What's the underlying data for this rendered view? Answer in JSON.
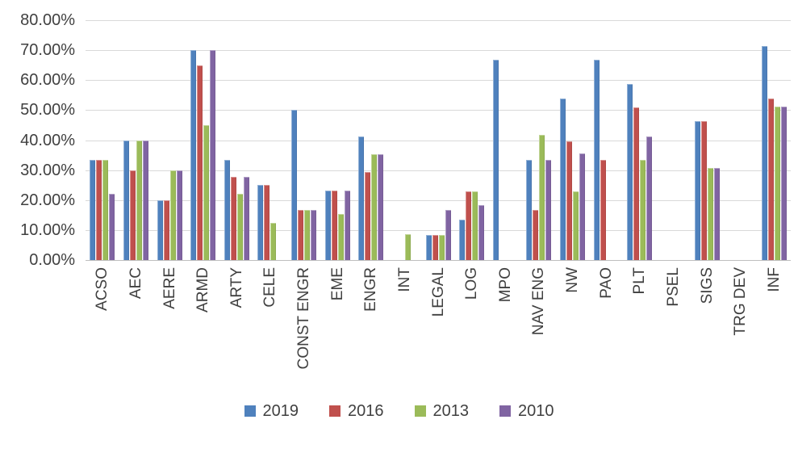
{
  "colors": {
    "gridline": "#d9d9d9",
    "axis_line": "#bfbfbf",
    "text": "#404040",
    "background": "#ffffff"
  },
  "chart_data": {
    "type": "bar",
    "title": "",
    "xlabel": "",
    "ylabel": "",
    "ylim": [
      0,
      80
    ],
    "grid": true,
    "legend_position": "bottom",
    "ytick_labels": [
      "80.00%",
      "70.00%",
      "60.00%",
      "50.00%",
      "40.00%",
      "30.00%",
      "20.00%",
      "10.00%",
      "0.00%"
    ],
    "categories": [
      "ACSO",
      "AEC",
      "AERE",
      "ARMD",
      "ARTY",
      "CELE",
      "CONST ENGR",
      "EME",
      "ENGR",
      "INT",
      "LEGAL",
      "LOG",
      "MPO",
      "NAV ENG",
      "NW",
      "PAO",
      "PLT",
      "PSEL",
      "SIGS",
      "TRG DEV",
      "INF"
    ],
    "series": [
      {
        "name": "2019",
        "color": "#4f81bd",
        "values": [
          33.3,
          40,
          20,
          70,
          33.3,
          25,
          50,
          23.1,
          41.2,
          0,
          8.3,
          13.6,
          66.7,
          33.3,
          54,
          66.7,
          58.8,
          0,
          46.2,
          0,
          71.4
        ]
      },
      {
        "name": "2016",
        "color": "#c0504d",
        "values": [
          33.3,
          30,
          20,
          65,
          27.8,
          25,
          16.7,
          23.1,
          29.4,
          0,
          8.3,
          23,
          0,
          16.7,
          39.5,
          33.3,
          51,
          0,
          46.2,
          0,
          54
        ]
      },
      {
        "name": "2013",
        "color": "#9bbb59",
        "values": [
          33.3,
          40,
          30,
          45,
          22.2,
          12.5,
          16.7,
          15.4,
          35.3,
          8.7,
          8.3,
          23,
          0,
          41.7,
          23,
          0,
          33.3,
          0,
          30.8,
          0,
          51.3
        ]
      },
      {
        "name": "2010",
        "color": "#8064a2",
        "values": [
          22.2,
          40,
          30,
          70,
          27.8,
          0,
          16.7,
          23.1,
          35.3,
          0,
          16.7,
          18.2,
          0,
          33.3,
          35.5,
          0,
          41.2,
          0,
          30.8,
          0,
          51.3
        ]
      }
    ]
  }
}
